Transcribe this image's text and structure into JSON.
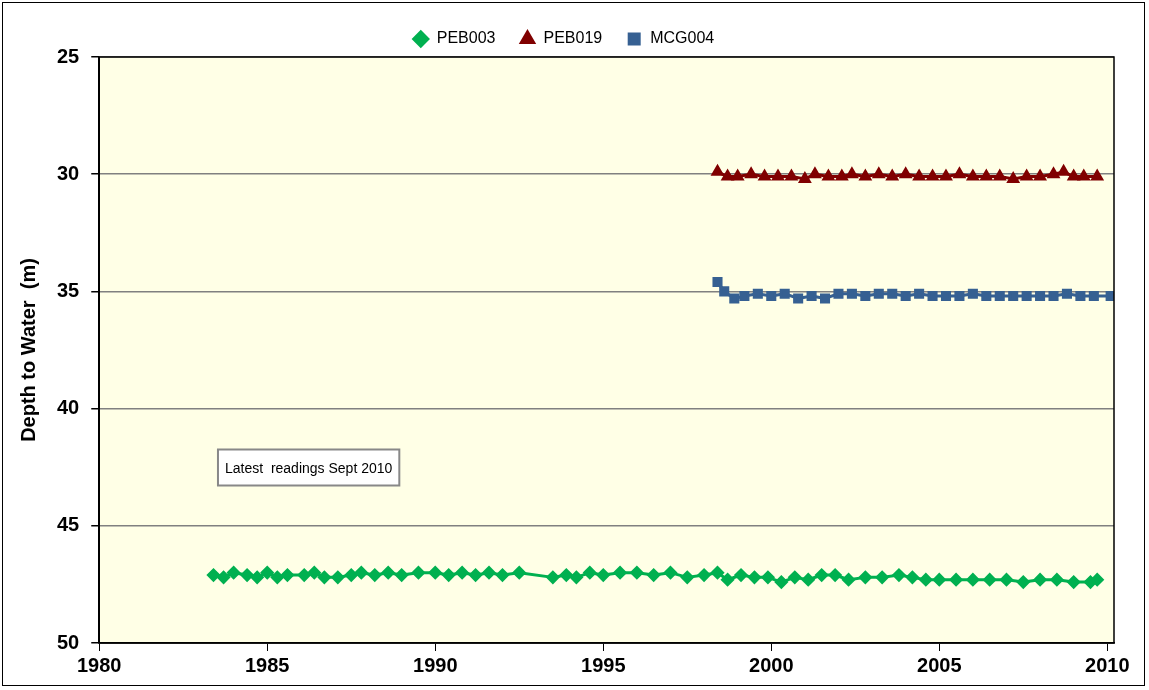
{
  "chart_data": {
    "type": "line",
    "ylabel": "Depth to Water  (m)",
    "xlim": [
      1980,
      2010.2
    ],
    "xticks": [
      1980,
      1985,
      1990,
      1995,
      2000,
      2005,
      2010
    ],
    "ylim": [
      50,
      25
    ],
    "yticks": [
      25,
      30,
      35,
      40,
      45,
      50
    ],
    "grid": "y",
    "legend": "top",
    "line_style": "solid",
    "annotations": [
      "Latest  readings Sept 2010"
    ],
    "series": [
      {
        "name": "PEB003",
        "color": "#00b050",
        "marker": "diamond",
        "x": [
          1983.4,
          1983.7,
          1984.0,
          1984.4,
          1984.7,
          1985.0,
          1985.3,
          1985.6,
          1986.1,
          1986.4,
          1986.7,
          1987.1,
          1987.5,
          1987.8,
          1988.2,
          1988.6,
          1989.0,
          1989.5,
          1990.0,
          1990.4,
          1990.8,
          1991.2,
          1991.6,
          1992.0,
          1992.5,
          1993.5,
          1993.9,
          1994.2,
          1994.6,
          1995.0,
          1995.5,
          1996.0,
          1996.5,
          1997.0,
          1997.5,
          1998.0,
          1998.4,
          1998.7,
          1999.1,
          1999.5,
          1999.9,
          2000.3,
          2000.7,
          2001.1,
          2001.5,
          2001.9,
          2002.3,
          2002.8,
          2003.3,
          2003.8,
          2004.2,
          2004.6,
          2005.0,
          2005.5,
          2006.0,
          2006.5,
          2007.0,
          2007.5,
          2008.0,
          2008.5,
          2009.0,
          2009.5,
          2009.7
        ],
        "values": [
          47.1,
          47.2,
          47.0,
          47.1,
          47.2,
          47.0,
          47.2,
          47.1,
          47.1,
          47.0,
          47.2,
          47.2,
          47.1,
          47.0,
          47.1,
          47.0,
          47.1,
          47.0,
          47.0,
          47.1,
          47.0,
          47.1,
          47.0,
          47.1,
          47.0,
          47.2,
          47.1,
          47.2,
          47.0,
          47.1,
          47.0,
          47.0,
          47.1,
          47.0,
          47.2,
          47.1,
          47.0,
          47.3,
          47.1,
          47.2,
          47.2,
          47.4,
          47.2,
          47.3,
          47.1,
          47.1,
          47.3,
          47.2,
          47.2,
          47.1,
          47.2,
          47.3,
          47.3,
          47.3,
          47.3,
          47.3,
          47.3,
          47.4,
          47.3,
          47.3,
          47.4,
          47.4,
          47.3
        ]
      },
      {
        "name": "PEB019",
        "color": "#800000",
        "marker": "triangle",
        "x": [
          1998.4,
          1998.7,
          1999.0,
          1999.4,
          1999.8,
          2000.2,
          2000.6,
          2001.0,
          2001.3,
          2001.7,
          2002.1,
          2002.4,
          2002.8,
          2003.2,
          2003.6,
          2004.0,
          2004.4,
          2004.8,
          2005.2,
          2005.6,
          2006.0,
          2006.4,
          2006.8,
          2007.2,
          2007.6,
          2008.0,
          2008.4,
          2008.7,
          2009.0,
          2009.3,
          2009.7
        ],
        "values": [
          29.9,
          30.1,
          30.1,
          30.0,
          30.1,
          30.1,
          30.1,
          30.2,
          30.0,
          30.1,
          30.1,
          30.0,
          30.1,
          30.0,
          30.1,
          30.0,
          30.1,
          30.1,
          30.1,
          30.0,
          30.1,
          30.1,
          30.1,
          30.2,
          30.1,
          30.1,
          30.0,
          29.9,
          30.1,
          30.1,
          30.1
        ]
      },
      {
        "name": "MCG004",
        "color": "#366092",
        "marker": "square",
        "x": [
          1998.4,
          1998.6,
          1998.9,
          1999.2,
          1999.6,
          2000.0,
          2000.4,
          2000.8,
          2001.2,
          2001.6,
          2002.0,
          2002.4,
          2002.8,
          2003.2,
          2003.6,
          2004.0,
          2004.4,
          2004.8,
          2005.2,
          2005.6,
          2006.0,
          2006.4,
          2006.8,
          2007.2,
          2007.6,
          2008.0,
          2008.4,
          2008.8,
          2009.2,
          2009.6,
          2010.1
        ],
        "values": [
          34.6,
          35.0,
          35.3,
          35.2,
          35.1,
          35.2,
          35.1,
          35.3,
          35.2,
          35.3,
          35.1,
          35.1,
          35.2,
          35.1,
          35.1,
          35.2,
          35.1,
          35.2,
          35.2,
          35.2,
          35.1,
          35.2,
          35.2,
          35.2,
          35.2,
          35.2,
          35.2,
          35.1,
          35.2,
          35.2,
          35.2
        ]
      }
    ]
  }
}
